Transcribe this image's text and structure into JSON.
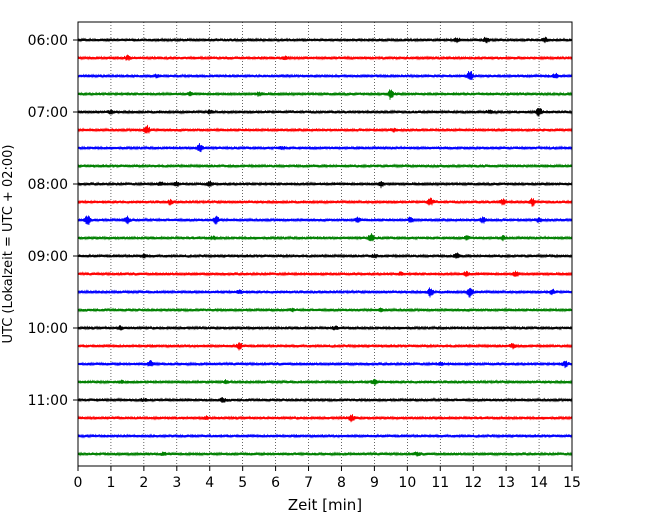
{
  "chart_data": {
    "type": "line",
    "title": "",
    "xlabel": "Zeit  [min]",
    "ylabel": "UTC (Lokalzeit = UTC + 02:00)",
    "xlim": [
      0,
      15
    ],
    "x_ticks": [
      0,
      1,
      2,
      3,
      4,
      5,
      6,
      7,
      8,
      9,
      10,
      11,
      12,
      13,
      14,
      15
    ],
    "y_tick_labels": [
      "06:00",
      "07:00",
      "08:00",
      "09:00",
      "10:00",
      "11:00"
    ],
    "grid": "x-dotted",
    "legend": "none",
    "trace_colors": [
      "#000000",
      "#ff0000",
      "#0000ff",
      "#008000"
    ],
    "series": [
      {
        "start": "06:00",
        "color": "#000000",
        "events": [
          [
            12.4,
            2.5
          ],
          [
            11.5,
            2
          ],
          [
            14.2,
            2
          ]
        ]
      },
      {
        "start": "06:15",
        "color": "#ff0000",
        "events": [
          [
            1.5,
            1.8
          ],
          [
            6.3,
            1.2
          ]
        ]
      },
      {
        "start": "06:30",
        "color": "#0000ff",
        "events": [
          [
            11.9,
            5
          ],
          [
            2.4,
            1.5
          ],
          [
            14.5,
            2
          ]
        ]
      },
      {
        "start": "06:45",
        "color": "#008000",
        "events": [
          [
            9.5,
            5
          ],
          [
            5.5,
            2
          ],
          [
            3.4,
            1.2
          ]
        ]
      },
      {
        "start": "07:00",
        "color": "#000000",
        "events": [
          [
            14.0,
            4
          ],
          [
            1.0,
            1.5
          ],
          [
            4.0,
            1.5
          ],
          [
            12.5,
            1.5
          ]
        ]
      },
      {
        "start": "07:15",
        "color": "#ff0000",
        "events": [
          [
            2.1,
            4
          ],
          [
            9.6,
            1.3
          ]
        ]
      },
      {
        "start": "07:30",
        "color": "#0000ff",
        "events": [
          [
            3.7,
            4
          ],
          [
            6.2,
            1.2
          ]
        ]
      },
      {
        "start": "07:45",
        "color": "#008000",
        "events": []
      },
      {
        "start": "08:00",
        "color": "#000000",
        "events": [
          [
            9.2,
            3
          ],
          [
            3.0,
            2
          ],
          [
            4.0,
            2
          ],
          [
            2.5,
            1.5
          ]
        ]
      },
      {
        "start": "08:15",
        "color": "#ff0000",
        "events": [
          [
            13.8,
            3.5
          ],
          [
            10.7,
            3.5
          ],
          [
            2.8,
            2
          ],
          [
            12.9,
            2.5
          ]
        ]
      },
      {
        "start": "08:30",
        "color": "#0000ff",
        "events": [
          [
            0.3,
            5
          ],
          [
            1.5,
            3
          ],
          [
            4.2,
            3.5
          ],
          [
            8.5,
            2.5
          ],
          [
            10.1,
            2.5
          ],
          [
            12.3,
            2.5
          ],
          [
            14.0,
            2
          ]
        ]
      },
      {
        "start": "08:45",
        "color": "#008000",
        "events": [
          [
            8.9,
            4
          ],
          [
            11.8,
            1.8
          ],
          [
            4.1,
            1.4
          ],
          [
            12.9,
            1.6
          ]
        ]
      },
      {
        "start": "09:00",
        "color": "#000000",
        "events": [
          [
            11.5,
            2
          ],
          [
            9.0,
            1.5
          ],
          [
            2.0,
            1.3
          ]
        ]
      },
      {
        "start": "09:15",
        "color": "#ff0000",
        "events": [
          [
            13.3,
            2.5
          ],
          [
            11.8,
            2
          ],
          [
            9.8,
            1.5
          ]
        ]
      },
      {
        "start": "09:30",
        "color": "#0000ff",
        "events": [
          [
            11.9,
            5
          ],
          [
            10.7,
            4
          ],
          [
            4.9,
            1.5
          ],
          [
            14.4,
            2
          ]
        ]
      },
      {
        "start": "09:45",
        "color": "#008000",
        "events": [
          [
            6.5,
            1.3
          ],
          [
            9.2,
            1.3
          ]
        ]
      },
      {
        "start": "10:00",
        "color": "#000000",
        "events": [
          [
            1.3,
            1.5
          ],
          [
            7.8,
            1.2
          ]
        ]
      },
      {
        "start": "10:15",
        "color": "#ff0000",
        "events": [
          [
            4.9,
            3
          ],
          [
            13.2,
            2
          ]
        ]
      },
      {
        "start": "10:30",
        "color": "#0000ff",
        "events": [
          [
            2.2,
            2.5
          ],
          [
            14.8,
            2.5
          ],
          [
            11.0,
            1.5
          ]
        ]
      },
      {
        "start": "10:45",
        "color": "#008000",
        "events": [
          [
            9.0,
            2.5
          ],
          [
            4.5,
            1.5
          ],
          [
            1.3,
            1.2
          ]
        ]
      },
      {
        "start": "11:00",
        "color": "#000000",
        "events": [
          [
            4.4,
            2
          ],
          [
            2.0,
            1.3
          ]
        ]
      },
      {
        "start": "11:15",
        "color": "#ff0000",
        "events": [
          [
            8.3,
            3
          ],
          [
            3.9,
            1.5
          ]
        ]
      },
      {
        "start": "11:30",
        "color": "#0000ff",
        "events": []
      },
      {
        "start": "11:45",
        "color": "#008000",
        "events": [
          [
            10.3,
            1.5
          ],
          [
            2.6,
            1.2
          ]
        ]
      }
    ]
  }
}
